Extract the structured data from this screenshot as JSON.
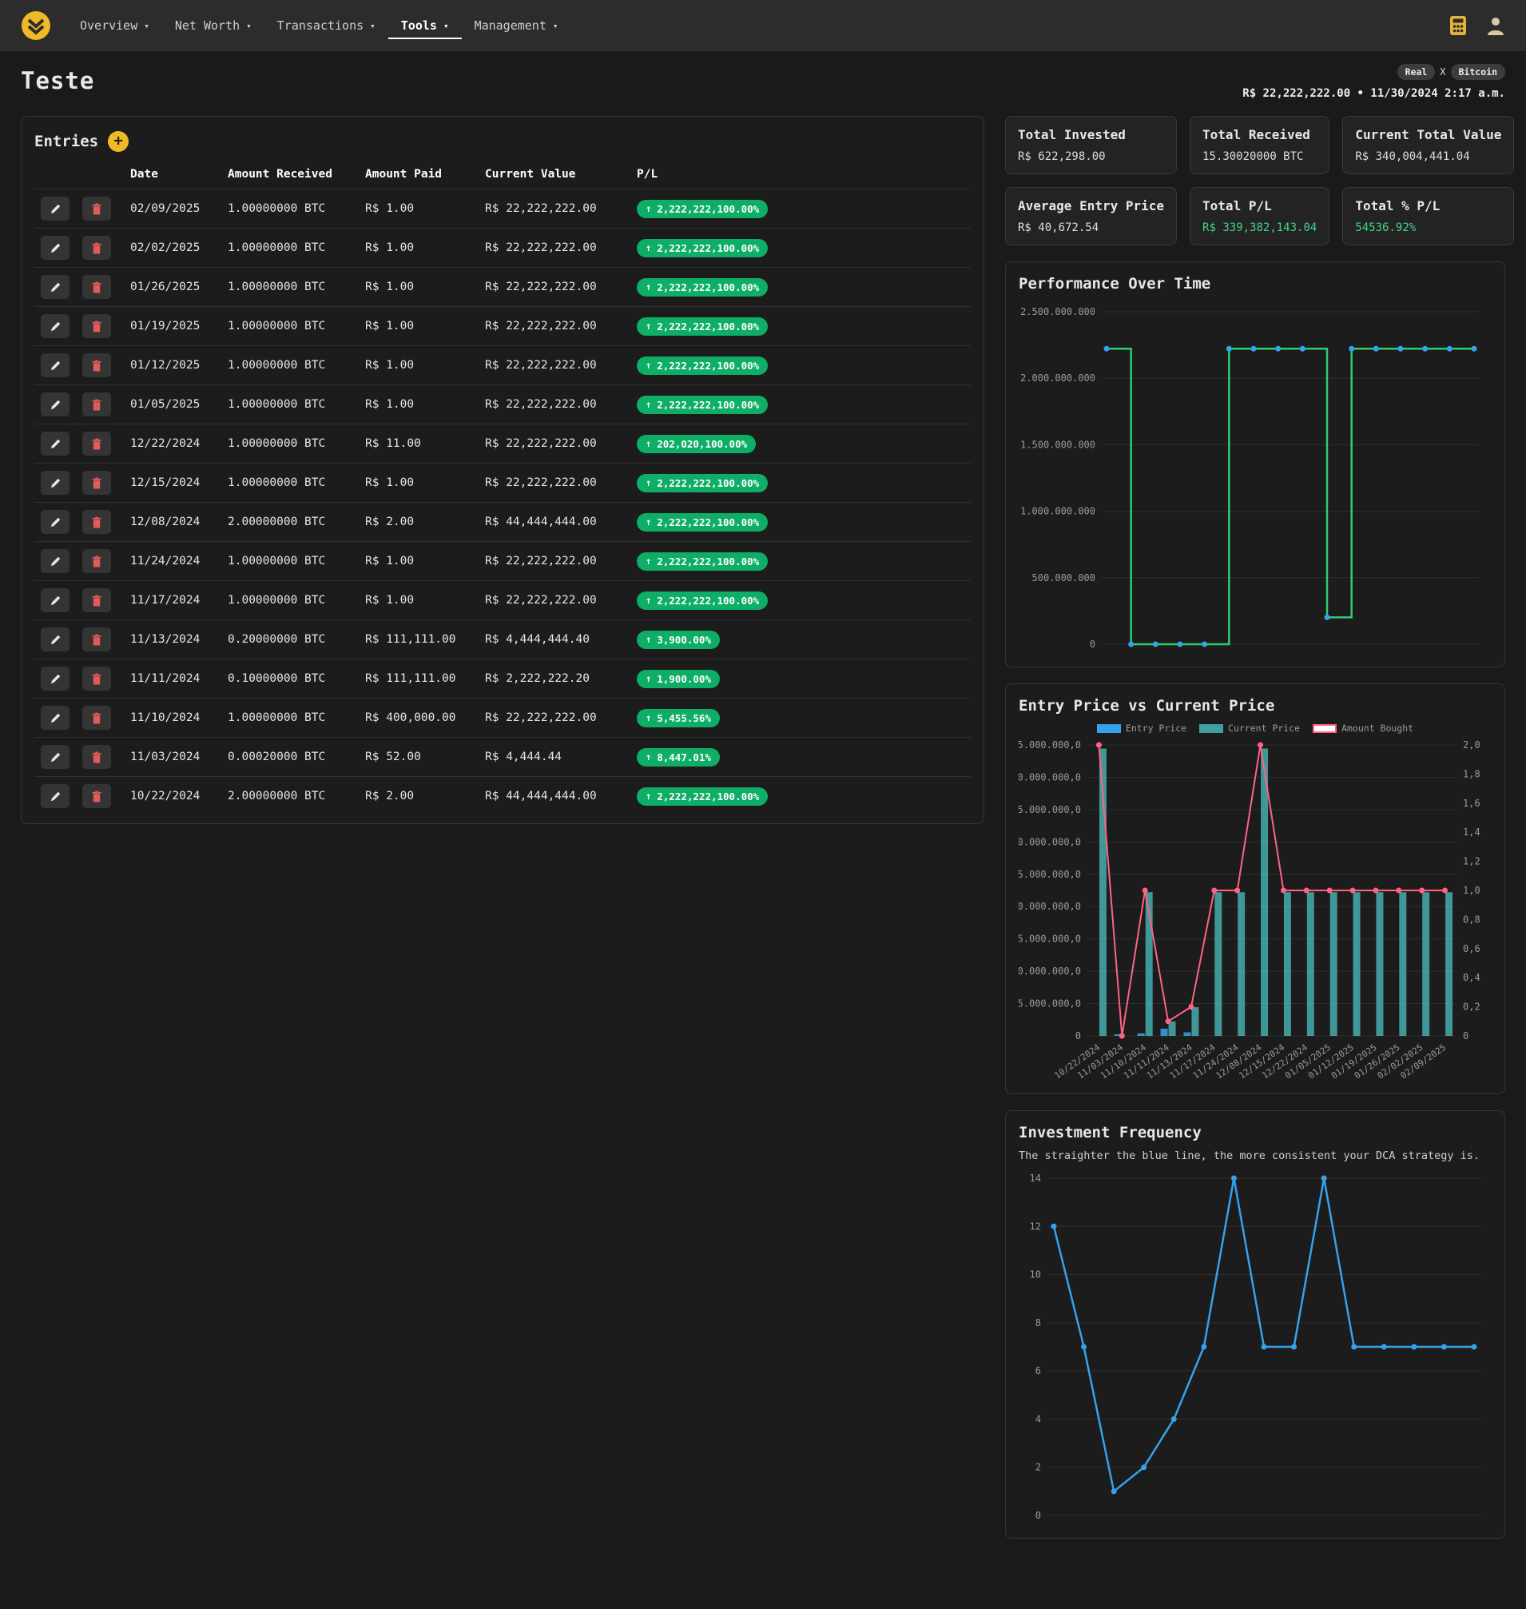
{
  "navbar": {
    "items": [
      {
        "label": "Overview",
        "active": false
      },
      {
        "label": "Net Worth",
        "active": false
      },
      {
        "label": "Transactions",
        "active": false
      },
      {
        "label": "Tools",
        "active": true
      },
      {
        "label": "Management",
        "active": false
      }
    ]
  },
  "header": {
    "title": "Teste",
    "pair": {
      "base": "Real",
      "separator": "X",
      "quote": "Bitcoin"
    },
    "price_line": "R$ 22,222,222.00 • 11/30/2024 2:17 a.m."
  },
  "entries": {
    "title": "Entries",
    "add_label": "+",
    "columns": [
      "Date",
      "Amount Received",
      "Amount Paid",
      "Current Value",
      "P/L"
    ],
    "rows": [
      {
        "date": "02/09/2025",
        "amount_received": "1.00000000 BTC",
        "amount_paid": "R$ 1.00",
        "current_value": "R$ 22,222,222.00",
        "pl": "2,222,222,100.00%"
      },
      {
        "date": "02/02/2025",
        "amount_received": "1.00000000 BTC",
        "amount_paid": "R$ 1.00",
        "current_value": "R$ 22,222,222.00",
        "pl": "2,222,222,100.00%"
      },
      {
        "date": "01/26/2025",
        "amount_received": "1.00000000 BTC",
        "amount_paid": "R$ 1.00",
        "current_value": "R$ 22,222,222.00",
        "pl": "2,222,222,100.00%"
      },
      {
        "date": "01/19/2025",
        "amount_received": "1.00000000 BTC",
        "amount_paid": "R$ 1.00",
        "current_value": "R$ 22,222,222.00",
        "pl": "2,222,222,100.00%"
      },
      {
        "date": "01/12/2025",
        "amount_received": "1.00000000 BTC",
        "amount_paid": "R$ 1.00",
        "current_value": "R$ 22,222,222.00",
        "pl": "2,222,222,100.00%"
      },
      {
        "date": "01/05/2025",
        "amount_received": "1.00000000 BTC",
        "amount_paid": "R$ 1.00",
        "current_value": "R$ 22,222,222.00",
        "pl": "2,222,222,100.00%"
      },
      {
        "date": "12/22/2024",
        "amount_received": "1.00000000 BTC",
        "amount_paid": "R$ 11.00",
        "current_value": "R$ 22,222,222.00",
        "pl": "202,020,100.00%"
      },
      {
        "date": "12/15/2024",
        "amount_received": "1.00000000 BTC",
        "amount_paid": "R$ 1.00",
        "current_value": "R$ 22,222,222.00",
        "pl": "2,222,222,100.00%"
      },
      {
        "date": "12/08/2024",
        "amount_received": "2.00000000 BTC",
        "amount_paid": "R$ 2.00",
        "current_value": "R$ 44,444,444.00",
        "pl": "2,222,222,100.00%"
      },
      {
        "date": "11/24/2024",
        "amount_received": "1.00000000 BTC",
        "amount_paid": "R$ 1.00",
        "current_value": "R$ 22,222,222.00",
        "pl": "2,222,222,100.00%"
      },
      {
        "date": "11/17/2024",
        "amount_received": "1.00000000 BTC",
        "amount_paid": "R$ 1.00",
        "current_value": "R$ 22,222,222.00",
        "pl": "2,222,222,100.00%"
      },
      {
        "date": "11/13/2024",
        "amount_received": "0.20000000 BTC",
        "amount_paid": "R$ 111,111.00",
        "current_value": "R$ 4,444,444.40",
        "pl": "3,900.00%"
      },
      {
        "date": "11/11/2024",
        "amount_received": "0.10000000 BTC",
        "amount_paid": "R$ 111,111.00",
        "current_value": "R$ 2,222,222.20",
        "pl": "1,900.00%"
      },
      {
        "date": "11/10/2024",
        "amount_received": "1.00000000 BTC",
        "amount_paid": "R$ 400,000.00",
        "current_value": "R$ 22,222,222.00",
        "pl": "5,455.56%"
      },
      {
        "date": "11/03/2024",
        "amount_received": "0.00020000 BTC",
        "amount_paid": "R$ 52.00",
        "current_value": "R$ 4,444.44",
        "pl": "8,447.01%"
      },
      {
        "date": "10/22/2024",
        "amount_received": "2.00000000 BTC",
        "amount_paid": "R$ 2.00",
        "current_value": "R$ 44,444,444.00",
        "pl": "2,222,222,100.00%"
      }
    ]
  },
  "stats": [
    {
      "label": "Total Invested",
      "value": "R$ 622,298.00",
      "green": false
    },
    {
      "label": "Total Received",
      "value": "15.30020000 BTC",
      "green": false
    },
    {
      "label": "Current Total Value",
      "value": "R$ 340,004,441.04",
      "green": false
    },
    {
      "label": "Average Entry Price",
      "value": "R$ 40,672.54",
      "green": false
    },
    {
      "label": "Total P/L",
      "value": "R$ 339,382,143.04",
      "green": true
    },
    {
      "label": "Total % P/L",
      "value": "54536.92%",
      "green": true
    }
  ],
  "colors": {
    "accent_yellow": "#f0b928",
    "green_badge": "#0fae66",
    "green_text": "#3fd68c",
    "perf_line": "#2ecc71",
    "point_blue": "#36a2eb",
    "bar_teal": "#4bc0c0",
    "bar_blue": "#36a2eb",
    "pink_line": "#ff6384",
    "grid": "#2e2e2e",
    "tick": "#9a9a9a"
  },
  "chart_data": [
    {
      "id": "performance",
      "type": "line",
      "title": "Performance Over Time",
      "stepped": true,
      "x": [
        "10/22/2024",
        "11/03/2024",
        "11/10/2024",
        "11/11/2024",
        "11/13/2024",
        "11/17/2024",
        "11/24/2024",
        "12/08/2024",
        "12/15/2024",
        "12/22/2024",
        "01/05/2025",
        "01/12/2025",
        "01/19/2025",
        "01/26/2025",
        "02/02/2025",
        "02/09/2025"
      ],
      "values": [
        2222222100,
        8447,
        5456,
        1900,
        3900,
        2222222100,
        2222222100,
        2222222100,
        2222222100,
        202020100,
        2222222100,
        2222222100,
        2222222100,
        2222222100,
        2222222100,
        2222222100
      ],
      "ylim": [
        0,
        2500000000
      ],
      "yticks": [
        "0",
        "500.000.000",
        "1.000.000.000",
        "1.500.000.000",
        "2.000.000.000",
        "2.500.000.000"
      ],
      "x_labels_visible": false,
      "legend_position": "none"
    },
    {
      "id": "entry-vs-current",
      "type": "bar",
      "title": "Entry Price vs Current Price",
      "categories": [
        "10/22/2024",
        "11/03/2024",
        "11/10/2024",
        "11/11/2024",
        "11/13/2024",
        "11/17/2024",
        "11/24/2024",
        "12/08/2024",
        "12/15/2024",
        "12/22/2024",
        "01/05/2025",
        "01/12/2025",
        "01/19/2025",
        "01/26/2025",
        "02/02/2025",
        "02/09/2025"
      ],
      "series": [
        {
          "name": "Entry Price",
          "kind": "bar",
          "axis": "left",
          "values": [
            1,
            260000,
            400000,
            1111110,
            555555,
            1,
            1,
            1,
            1,
            11,
            1,
            1,
            1,
            1,
            1,
            1
          ]
        },
        {
          "name": "Current Price",
          "kind": "bar",
          "axis": "left",
          "values": [
            44444444,
            4444.44,
            22222222,
            2222222.2,
            4444444.4,
            22222222,
            22222222,
            44444444,
            22222222,
            22222222,
            22222222,
            22222222,
            22222222,
            22222222,
            22222222,
            22222222
          ]
        },
        {
          "name": "Amount Bought",
          "kind": "line",
          "axis": "right",
          "values": [
            2,
            0.0002,
            1,
            0.1,
            0.2,
            1,
            1,
            2,
            1,
            1,
            1,
            1,
            1,
            1,
            1,
            1
          ]
        }
      ],
      "left_ylim": [
        0,
        45000000
      ],
      "left_yticks": [
        "0",
        "5.000.000,0",
        "10.000.000,0",
        "15.000.000,0",
        "20.000.000,0",
        "25.000.000,0",
        "30.000.000,0",
        "35.000.000,0",
        "40.000.000,0",
        "45.000.000,0"
      ],
      "right_ylim": [
        0,
        2
      ],
      "right_yticks": [
        "0",
        "0,2",
        "0,4",
        "0,6",
        "0,8",
        "1,0",
        "1,2",
        "1,4",
        "1,6",
        "1,8",
        "2,0"
      ],
      "legend_position": "top"
    },
    {
      "id": "frequency",
      "type": "line",
      "title": "Investment Frequency",
      "subtitle": "The straighter the blue line, the more consistent your DCA strategy is.",
      "values": [
        12,
        7,
        1,
        2,
        4,
        7,
        14,
        7,
        7,
        14,
        7,
        7,
        7,
        7,
        7
      ],
      "ylim": [
        0,
        14
      ],
      "yticks": [
        "0",
        "2",
        "4",
        "6",
        "8",
        "10",
        "12",
        "14"
      ],
      "x_labels_visible": false,
      "legend_position": "none"
    }
  ]
}
